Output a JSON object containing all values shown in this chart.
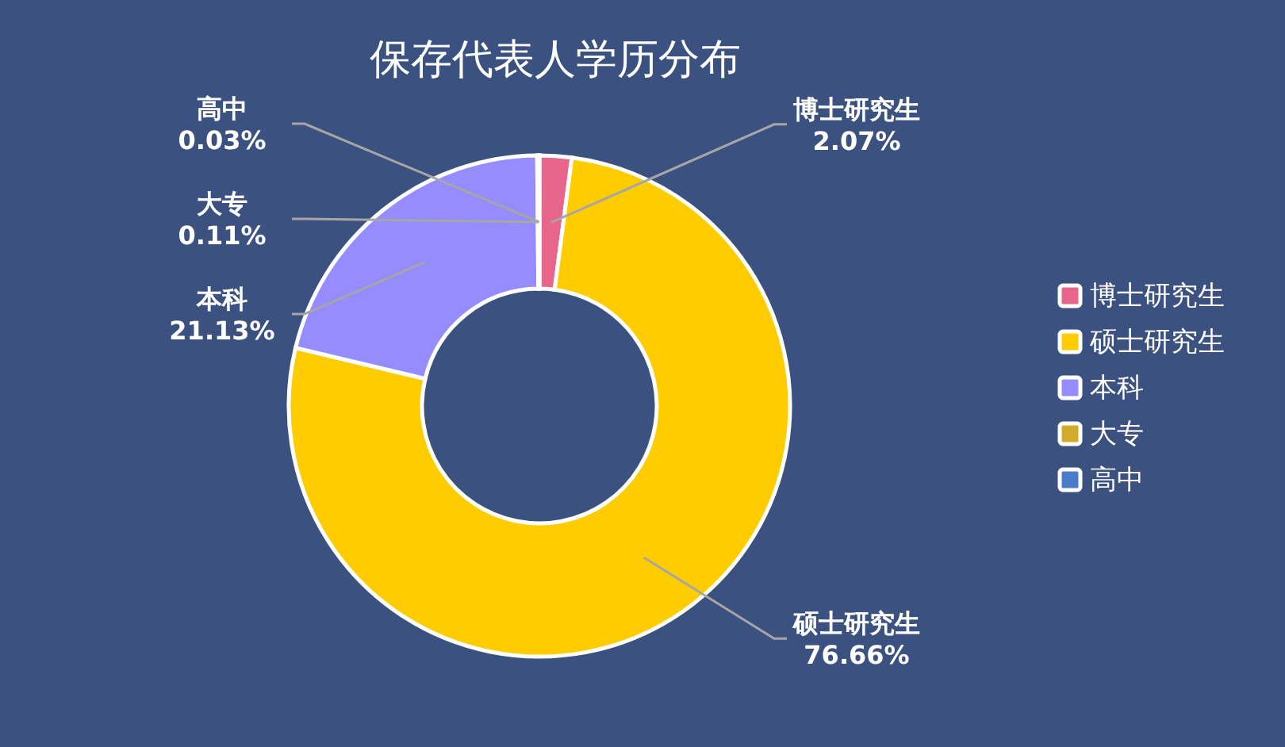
{
  "chart_data": {
    "type": "donut",
    "title": "保存代表人学历分布",
    "categories": [
      "博士研究生",
      "硕士研究生",
      "本科",
      "大专",
      "高中"
    ],
    "values": [
      2.07,
      76.66,
      21.13,
      0.11,
      0.03
    ],
    "colors": [
      "#e8668c",
      "#ffcc00",
      "#958cff",
      "#d4aa2a",
      "#4a7cc9"
    ],
    "value_labels": [
      "2.07%",
      "76.66%",
      "21.13%",
      "0.11%",
      "0.03%"
    ],
    "legend": "right"
  }
}
